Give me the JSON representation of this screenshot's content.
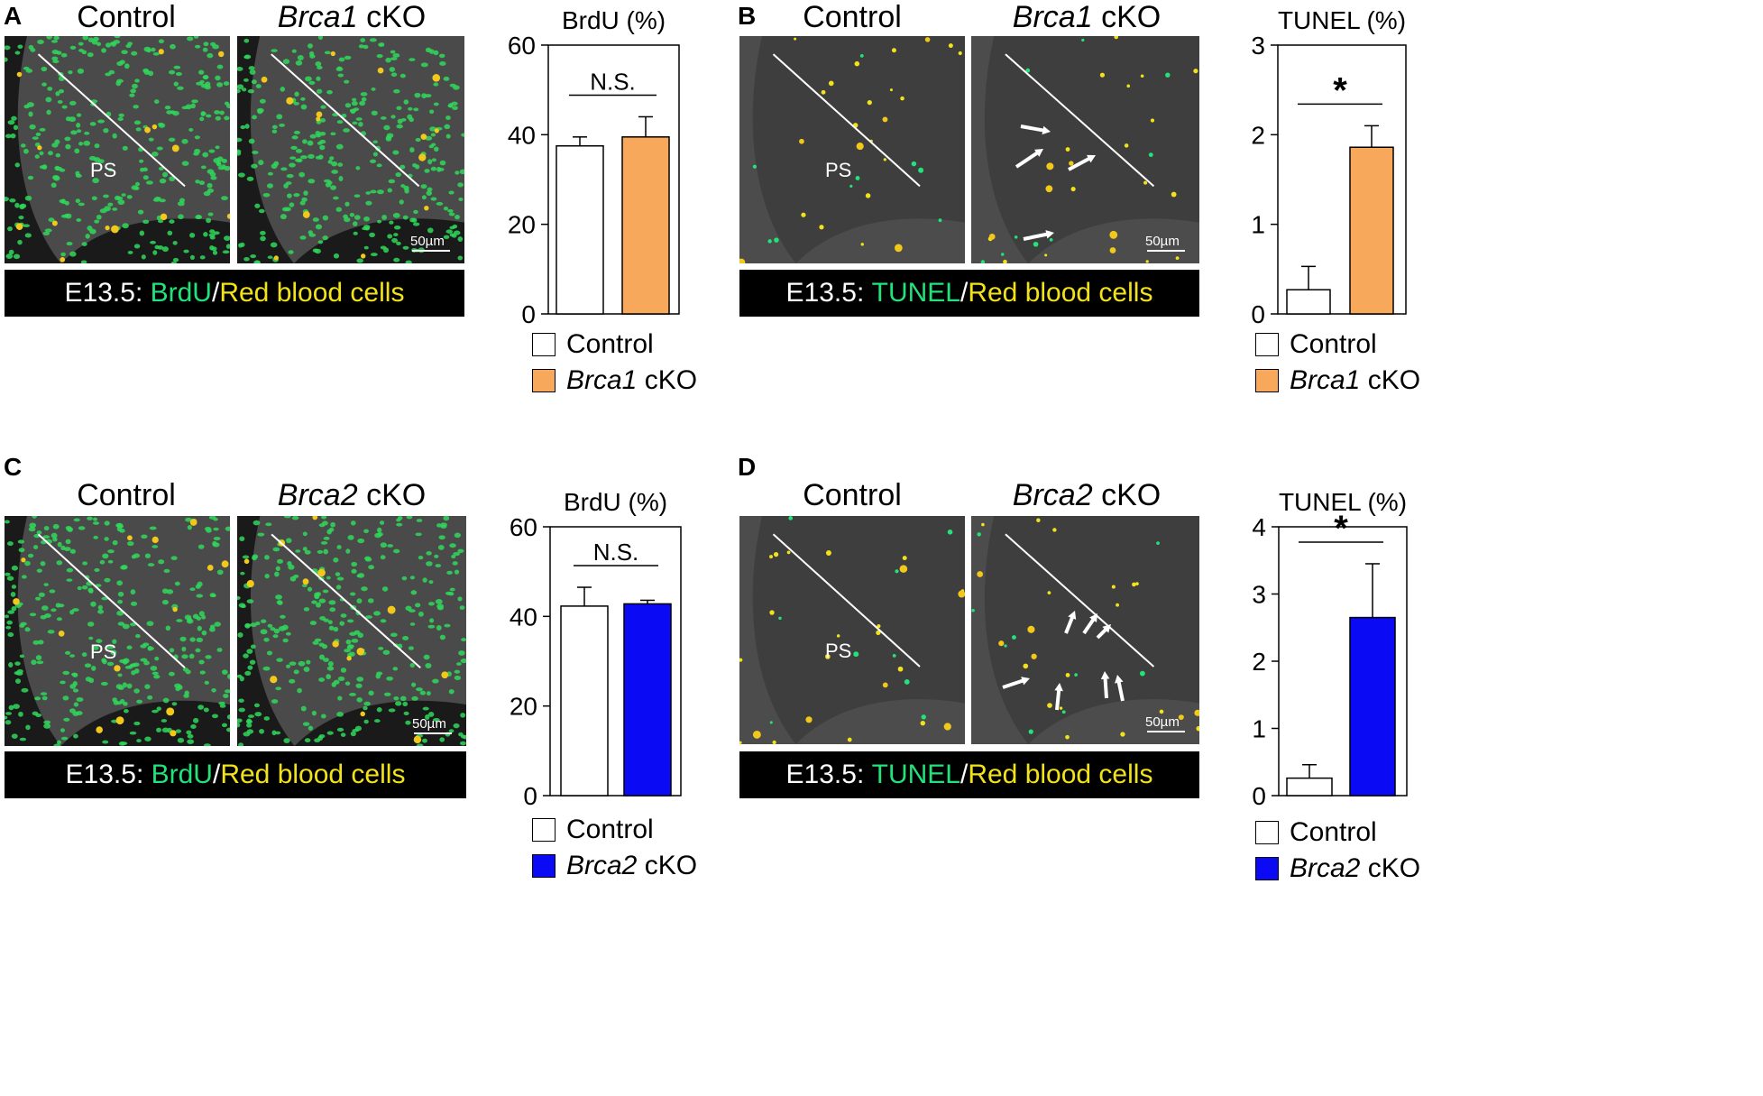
{
  "panels": [
    {
      "letter": "A",
      "title_control": "Control",
      "title_ko_gene": "Brca1",
      "title_ko_suffix": " cKO",
      "caption_prefix": "E13.5: ",
      "caption_marker": "BrdU",
      "caption_sep": "/",
      "caption_rbc": "Red blood cells",
      "ps_label": "PS",
      "scale_label": "50µm",
      "stain": "brdu"
    },
    {
      "letter": "B",
      "title_control": "Control",
      "title_ko_gene": "Brca1",
      "title_ko_suffix": " cKO",
      "caption_prefix": "E13.5: ",
      "caption_marker": "TUNEL",
      "caption_sep": "/",
      "caption_rbc": "Red blood cells",
      "ps_label": "PS",
      "scale_label": "50µm",
      "stain": "tunel"
    },
    {
      "letter": "C",
      "title_control": "Control",
      "title_ko_gene": "Brca2",
      "title_ko_suffix": " cKO",
      "caption_prefix": "E13.5: ",
      "caption_marker": "BrdU",
      "caption_sep": "/",
      "caption_rbc": "Red blood cells",
      "ps_label": "PS",
      "scale_label": "50µm",
      "stain": "brdu"
    },
    {
      "letter": "D",
      "title_control": "Control",
      "title_ko_gene": "Brca2",
      "title_ko_suffix": " cKO",
      "caption_prefix": "E13.5: ",
      "caption_marker": "TUNEL",
      "caption_sep": "/",
      "caption_rbc": "Red blood cells",
      "ps_label": "PS",
      "scale_label": "50µm",
      "stain": "tunel"
    }
  ],
  "legends": [
    {
      "control": "Control",
      "ko_gene": "Brca1",
      "ko_suffix": " cKO",
      "ko_color": "#f8a85a"
    },
    {
      "control": "Control",
      "ko_gene": "Brca1",
      "ko_suffix": " cKO",
      "ko_color": "#f8a85a"
    },
    {
      "control": "Control",
      "ko_gene": "Brca2",
      "ko_suffix": " cKO",
      "ko_color": "#0a0af5"
    },
    {
      "control": "Control",
      "ko_gene": "Brca2",
      "ko_suffix": " cKO",
      "ko_color": "#0a0af5"
    }
  ],
  "colors": {
    "brca1_ko": "#f8a85a",
    "brca2_ko": "#0a0af5",
    "control": "#ffffff",
    "brdu_green": "#22e27a",
    "rbc_yellow": "#f2e21a"
  },
  "chart_data": [
    {
      "panel": "A",
      "type": "bar",
      "title": "BrdU (%)",
      "categories": [
        "Control",
        "Brca1 cKO"
      ],
      "values": [
        37.5,
        39.5
      ],
      "errors": [
        2,
        4.5
      ],
      "ylim": [
        0,
        60
      ],
      "yticks": [
        0,
        20,
        40,
        60
      ],
      "colors": [
        "#ffffff",
        "#f8a85a"
      ],
      "annotation": "N.S."
    },
    {
      "panel": "B",
      "type": "bar",
      "title": "TUNEL (%)",
      "categories": [
        "Control",
        "Brca1 cKO"
      ],
      "values": [
        0.27,
        1.86
      ],
      "errors": [
        0.26,
        0.24
      ],
      "ylim": [
        0,
        3
      ],
      "yticks": [
        0,
        1,
        2,
        3
      ],
      "colors": [
        "#ffffff",
        "#f8a85a"
      ],
      "annotation": "*"
    },
    {
      "panel": "C",
      "type": "bar",
      "title": "BrdU (%)",
      "categories": [
        "Control",
        "Brca2 cKO"
      ],
      "values": [
        42.3,
        42.8
      ],
      "errors": [
        4.2,
        0.8
      ],
      "ylim": [
        0,
        60
      ],
      "yticks": [
        0,
        20,
        40,
        60
      ],
      "colors": [
        "#ffffff",
        "#0a0af5"
      ],
      "annotation": "N.S."
    },
    {
      "panel": "D",
      "type": "bar",
      "title": "TUNEL (%)",
      "categories": [
        "Control",
        "Brca2 cKO"
      ],
      "values": [
        0.26,
        2.65
      ],
      "errors": [
        0.2,
        0.8
      ],
      "ylim": [
        0,
        4
      ],
      "yticks": [
        0,
        1,
        2,
        3,
        4
      ],
      "colors": [
        "#ffffff",
        "#0a0af5"
      ],
      "annotation": "*"
    }
  ]
}
